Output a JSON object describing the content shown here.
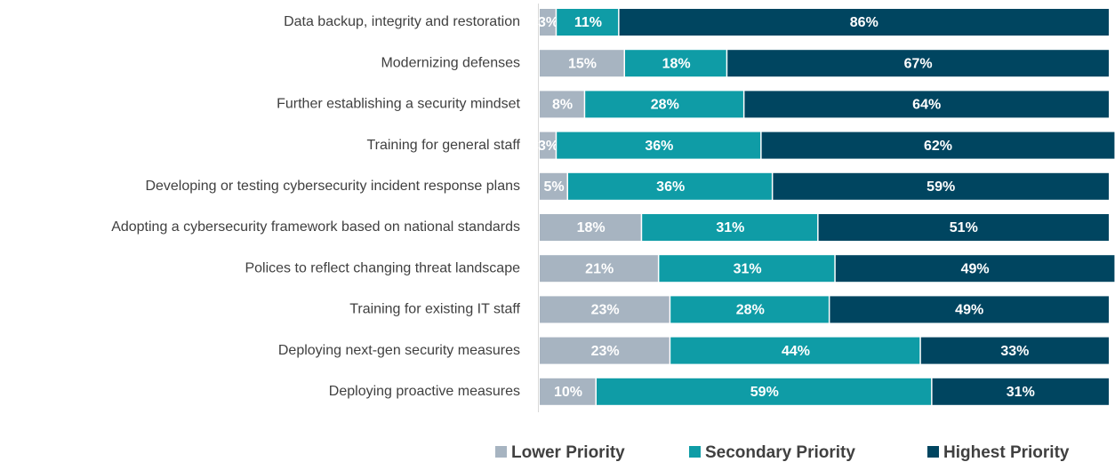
{
  "chart_data": {
    "type": "bar",
    "orientation": "horizontal",
    "stacked": true,
    "categories": [
      "Data backup, integrity and restoration",
      "Modernizing defenses",
      "Further establishing a security mindset",
      "Training for general staff",
      "Developing or testing cybersecurity incident response plans",
      "Adopting a cybersecurity framework based on national standards",
      "Polices to reflect changing threat landscape",
      "Training for existing IT staff",
      "Deploying next-gen security measures",
      "Deploying proactive measures"
    ],
    "series": [
      {
        "name": "Lower Priority",
        "color": "#a7b4c1",
        "values": [
          3,
          15,
          8,
          3,
          5,
          18,
          21,
          23,
          23,
          10
        ],
        "value_labels": [
          "3%",
          "15%",
          "8%",
          "3%",
          "5%",
          "18%",
          "21%",
          "23%",
          "23%",
          "10%"
        ]
      },
      {
        "name": "Secondary Priority",
        "color": "#0f9ca6",
        "values": [
          11,
          18,
          28,
          36,
          36,
          31,
          31,
          28,
          44,
          59
        ],
        "value_labels": [
          "11%",
          "18%",
          "28%",
          "36%",
          "36%",
          "31%",
          "31%",
          "28%",
          "44%",
          "59%"
        ]
      },
      {
        "name": "Highest Priority",
        "color": "#004560",
        "values": [
          86,
          67,
          64,
          62,
          59,
          51,
          49,
          49,
          33,
          31
        ],
        "value_labels": [
          "86%",
          "67%",
          "64%",
          "62%",
          "59%",
          "51%",
          "49%",
          "49%",
          "33%",
          "31%"
        ]
      }
    ],
    "xlim": [
      0,
      100
    ],
    "legend": "bottom"
  }
}
